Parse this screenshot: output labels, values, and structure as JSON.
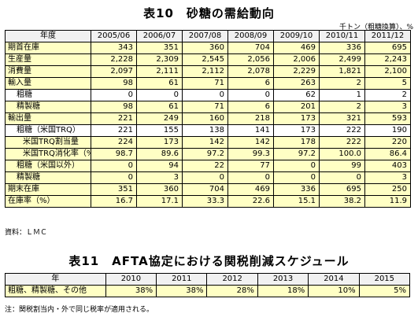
{
  "table10": {
    "title": "表10　砂糖の需給動向",
    "unit": "千トン（粗糖換算）、%",
    "year_header": "年度",
    "years": [
      "2005/06",
      "2006/07",
      "2007/08",
      "2008/09",
      "2009/10",
      "2010/11",
      "2011/12"
    ],
    "rows": [
      {
        "label": "期首在庫",
        "values": [
          "343",
          "351",
          "360",
          "704",
          "469",
          "336",
          "695"
        ]
      },
      {
        "label": "生産量",
        "values": [
          "2,228",
          "2,309",
          "2,545",
          "2,056",
          "2,006",
          "2,499",
          "2,243"
        ]
      },
      {
        "label": "消費量",
        "values": [
          "2,097",
          "2,111",
          "2,112",
          "2,078",
          "2,229",
          "1,821",
          "2,100"
        ]
      },
      {
        "label": "輸入量",
        "values": [
          "98",
          "61",
          "71",
          "6",
          "263",
          "2",
          "5"
        ]
      },
      {
        "label": "粗糖",
        "values": [
          "0",
          "0",
          "0",
          "0",
          "62",
          "1",
          "2"
        ]
      },
      {
        "label": "精製糖",
        "values": [
          "98",
          "61",
          "71",
          "6",
          "201",
          "2",
          "3"
        ]
      },
      {
        "label": "輸出量",
        "values": [
          "221",
          "249",
          "160",
          "218",
          "173",
          "321",
          "593"
        ]
      },
      {
        "label": "粗糖（米国TRQ）",
        "values": [
          "221",
          "155",
          "138",
          "141",
          "173",
          "222",
          "190"
        ]
      },
      {
        "label": "米国TRQ割当量",
        "values": [
          "224",
          "173",
          "142",
          "142",
          "178",
          "222",
          "220"
        ]
      },
      {
        "label": "米国TRQ消化率（%）",
        "values": [
          "98.7",
          "89.6",
          "97.2",
          "99.3",
          "97.2",
          "100.0",
          "86.4"
        ]
      },
      {
        "label": "粗糖（米国以外）",
        "values": [
          "0",
          "94",
          "22",
          "77",
          "0",
          "99",
          "403"
        ]
      },
      {
        "label": "精製糖",
        "values": [
          "0",
          "3",
          "0",
          "0",
          "0",
          "0",
          "3"
        ]
      },
      {
        "label": "期末在庫",
        "values": [
          "351",
          "360",
          "704",
          "469",
          "336",
          "695",
          "250"
        ]
      },
      {
        "label": "在庫率（%）",
        "values": [
          "16.7",
          "17.1",
          "33.3",
          "22.6",
          "15.1",
          "38.2",
          "11.9"
        ]
      }
    ],
    "source": "資料：ＬＭＣ"
  },
  "table11": {
    "title": "表11　AFTA協定における関税削減スケジュール",
    "year_header": "年",
    "years": [
      "2010",
      "2011",
      "2012",
      "2013",
      "2014",
      "2015"
    ],
    "row": {
      "label": "粗糖、精製糖、その他",
      "values": [
        "38%",
        "38%",
        "28%",
        "18%",
        "10%",
        "5%"
      ]
    },
    "note": "注：関税割当内・外で同じ税率が適用される。"
  },
  "colors": {
    "highlight": "#ffffc4",
    "header_bg": "#f1f1f1"
  }
}
